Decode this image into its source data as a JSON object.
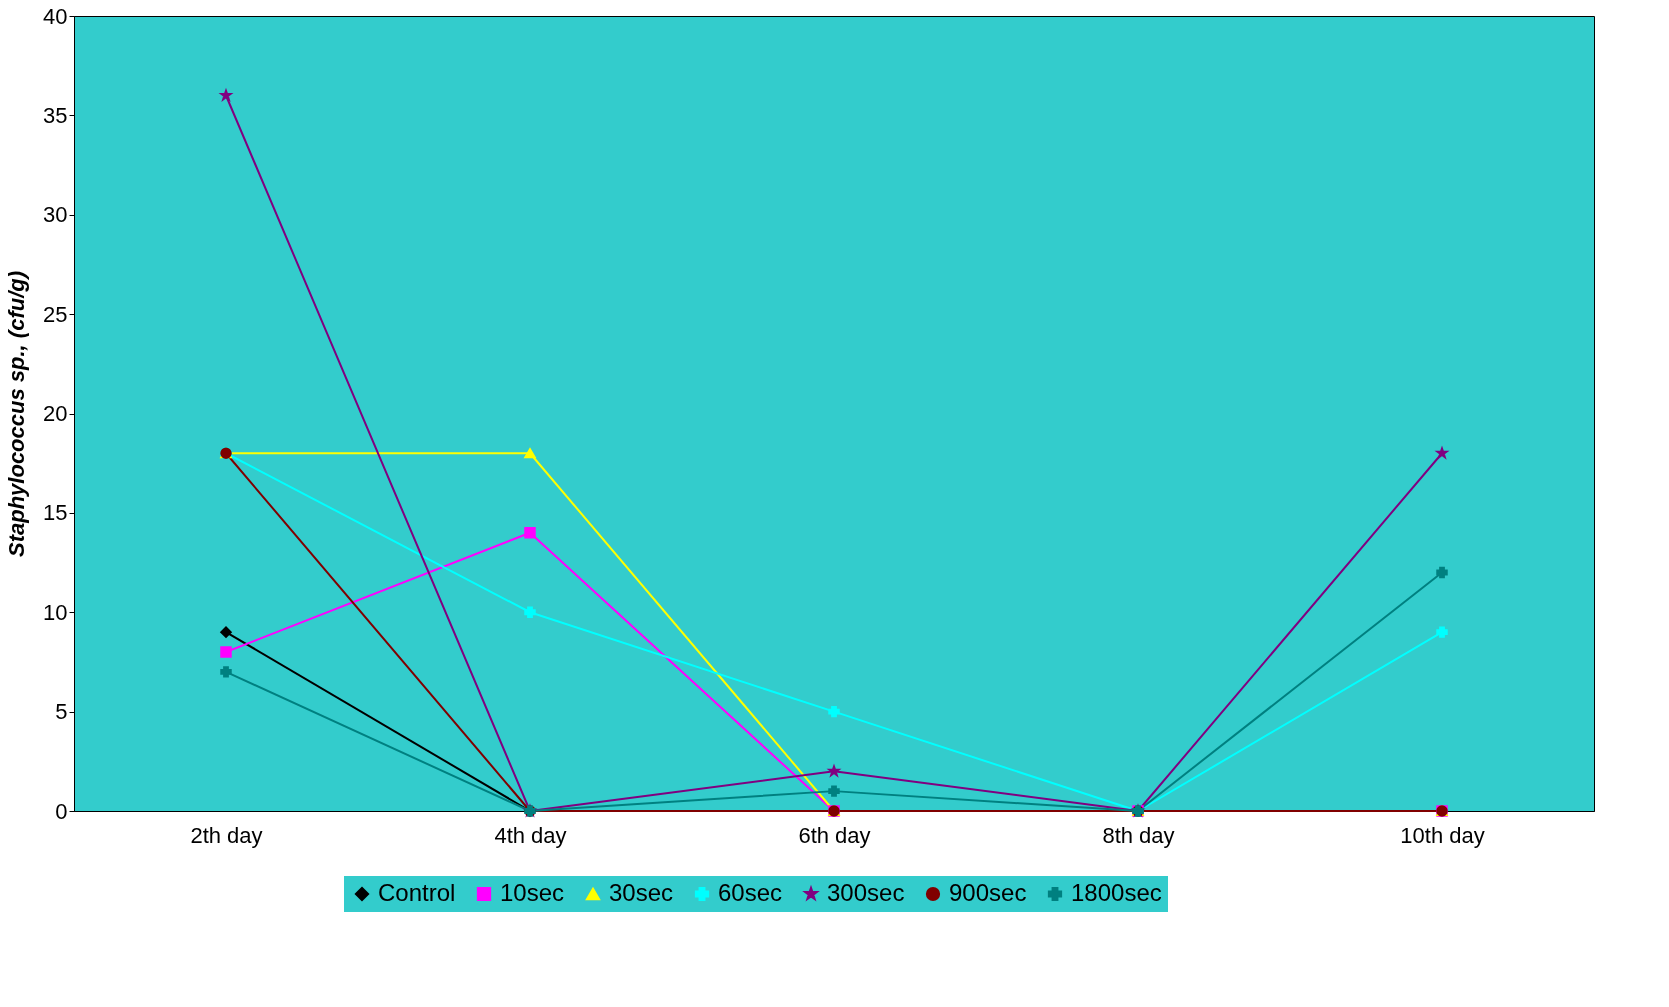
{
  "chart_data": {
    "type": "line",
    "ylabel": "Staphylococcus sp., (cfu/g)",
    "categories": [
      "2th day",
      "4th day",
      "6th day",
      "8th day",
      "10th day"
    ],
    "ylim": [
      0,
      40
    ],
    "yticks": [
      0,
      5,
      10,
      15,
      20,
      25,
      30,
      35,
      40
    ],
    "grid": false,
    "legend": "bottom",
    "series": [
      {
        "name": "Control",
        "color": "#000000",
        "marker": "diamond",
        "values": [
          9,
          0,
          null,
          null,
          null
        ]
      },
      {
        "name": "10sec",
        "color": "#ff00ff",
        "marker": "square",
        "values": [
          8,
          14,
          0,
          0,
          0
        ]
      },
      {
        "name": "30sec",
        "color": "#ffff00",
        "marker": "triangle",
        "values": [
          18,
          18,
          0,
          0,
          0
        ]
      },
      {
        "name": "60sec",
        "color": "#00ffff",
        "marker": "cross",
        "values": [
          18,
          10,
          5,
          0,
          9
        ]
      },
      {
        "name": "300sec",
        "color": "#800080",
        "marker": "star",
        "values": [
          36,
          0,
          2,
          0,
          18
        ]
      },
      {
        "name": "900sec",
        "color": "#800000",
        "marker": "circle",
        "values": [
          18,
          0,
          0,
          0,
          0
        ]
      },
      {
        "name": "1800sec",
        "color": "#008080",
        "marker": "cross",
        "values": [
          7,
          0,
          1,
          0,
          12
        ]
      }
    ]
  }
}
